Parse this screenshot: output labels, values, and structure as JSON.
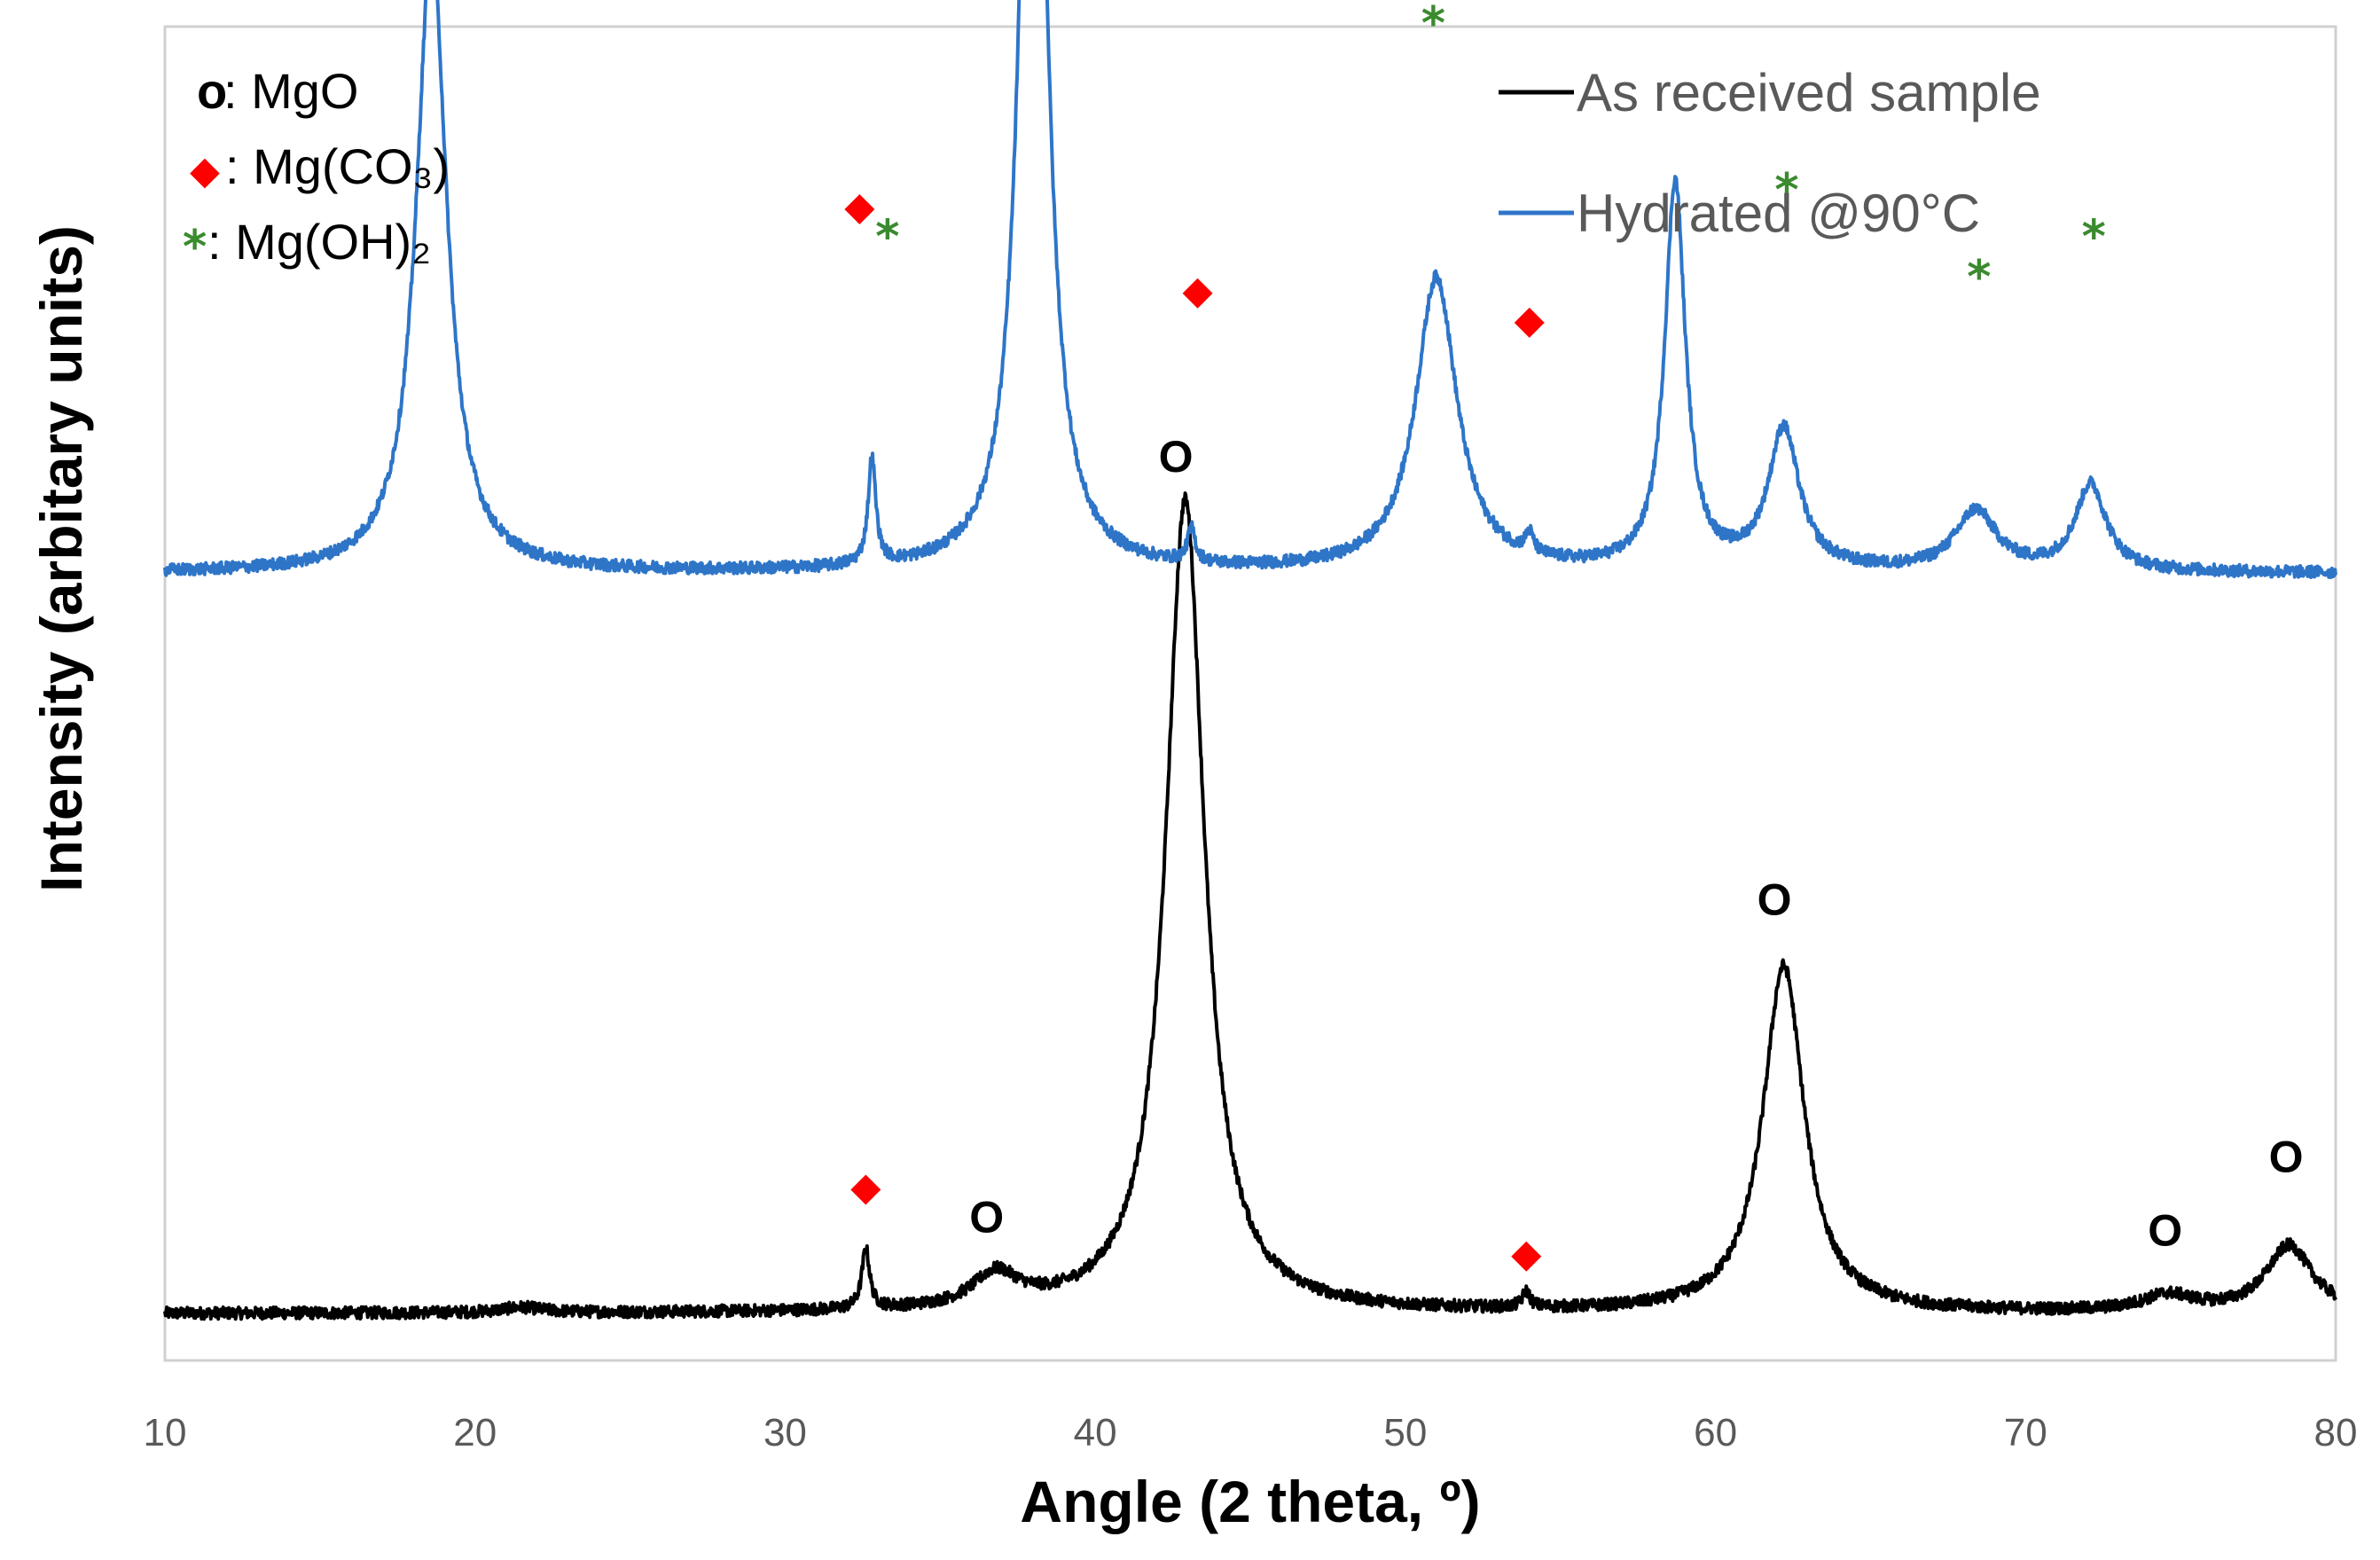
{
  "chart_data": {
    "type": "line",
    "xlabel": "Angle (2 theta, º)",
    "ylabel": "Intensity (arbitary units)",
    "xlim": [
      10,
      80
    ],
    "ylim": [
      0,
      100
    ],
    "xticks": [
      10,
      20,
      30,
      40,
      50,
      60,
      70,
      80
    ],
    "colors": {
      "as_received": "#000000",
      "hydrated": "#2e75c8",
      "carbonate": "#ff0000",
      "hydroxide": "#3a8a2e"
    },
    "legend": [
      {
        "label": "As received sample",
        "color": "#000000"
      },
      {
        "label": "Hydrated @90°C",
        "color": "#2e75c8"
      }
    ],
    "phase_key": [
      {
        "symbol": "o",
        "label": ": MgO"
      },
      {
        "symbol": "◆",
        "label": ": Mg(CO₃)"
      },
      {
        "symbol": "*",
        "label": ": Mg(OH)₂"
      }
    ],
    "series": [
      {
        "name": "As received sample",
        "baseline": 3.5,
        "peaks": [
          {
            "x": 21.5,
            "h": 0.4,
            "w": 0.8
          },
          {
            "x": 32.6,
            "h": 4.5,
            "w": 0.15
          },
          {
            "x": 36.8,
            "h": 2.5,
            "w": 0.9
          },
          {
            "x": 42.9,
            "h": 61,
            "w": 0.75
          },
          {
            "x": 53.9,
            "h": 1.2,
            "w": 0.15
          },
          {
            "x": 62.2,
            "h": 26,
            "w": 0.8
          },
          {
            "x": 74.6,
            "h": 1.2,
            "w": 1.0
          },
          {
            "x": 78.5,
            "h": 5,
            "w": 0.9
          }
        ]
      },
      {
        "name": "Hydrated @90°C",
        "baseline": 59,
        "peaks": [
          {
            "x": 18.6,
            "h": 47,
            "w": 0.6
          },
          {
            "x": 32.8,
            "h": 8,
            "w": 0.15
          },
          {
            "x": 38.0,
            "h": 81,
            "w": 0.48
          },
          {
            "x": 43.1,
            "h": 2.5,
            "w": 0.15
          },
          {
            "x": 51.0,
            "h": 22,
            "w": 0.8
          },
          {
            "x": 54.0,
            "h": 1.5,
            "w": 0.15
          },
          {
            "x": 58.7,
            "h": 29,
            "w": 0.4
          },
          {
            "x": 62.2,
            "h": 10.5,
            "w": 0.6
          },
          {
            "x": 68.4,
            "h": 4.5,
            "w": 0.8
          },
          {
            "x": 72.1,
            "h": 6.5,
            "w": 0.6
          }
        ]
      }
    ],
    "annotations": [
      {
        "type": "mgo",
        "text": "O",
        "x": 36.5,
        "y": 10.5
      },
      {
        "type": "mgo",
        "text": "O",
        "x": 42.6,
        "y": 67.5
      },
      {
        "type": "mgo",
        "text": "O",
        "x": 61.9,
        "y": 34.3
      },
      {
        "type": "mgo",
        "text": "O",
        "x": 74.5,
        "y": 9.5
      },
      {
        "type": "mgo",
        "text": "O",
        "x": 78.4,
        "y": 15.0
      },
      {
        "type": "carbonate",
        "x": 32.6,
        "y": 12.8
      },
      {
        "type": "carbonate",
        "x": 53.9,
        "y": 7.8
      },
      {
        "type": "carbonate",
        "x": 32.4,
        "y": 86.3
      },
      {
        "type": "carbonate",
        "x": 43.3,
        "y": 80.0
      },
      {
        "type": "carbonate",
        "x": 54.0,
        "y": 77.8
      },
      {
        "type": "hydroxide",
        "text": "*",
        "x": 18.6,
        "y": 122.0
      },
      {
        "type": "hydroxide",
        "text": "*",
        "x": 38.0,
        "y": 156.0
      },
      {
        "type": "hydroxide",
        "text": "*",
        "x": 33.3,
        "y": 84.0
      },
      {
        "type": "hydroxide",
        "text": "*",
        "x": 50.9,
        "y": 100.0
      },
      {
        "type": "hydroxide",
        "text": "*",
        "x": 58.8,
        "y": 108.5
      },
      {
        "type": "hydroxide",
        "text": "*",
        "x": 62.3,
        "y": 87.5
      },
      {
        "type": "hydroxide",
        "text": "*",
        "x": 68.5,
        "y": 81.0
      },
      {
        "type": "hydroxide",
        "text": "*",
        "x": 72.2,
        "y": 84.0
      }
    ]
  }
}
